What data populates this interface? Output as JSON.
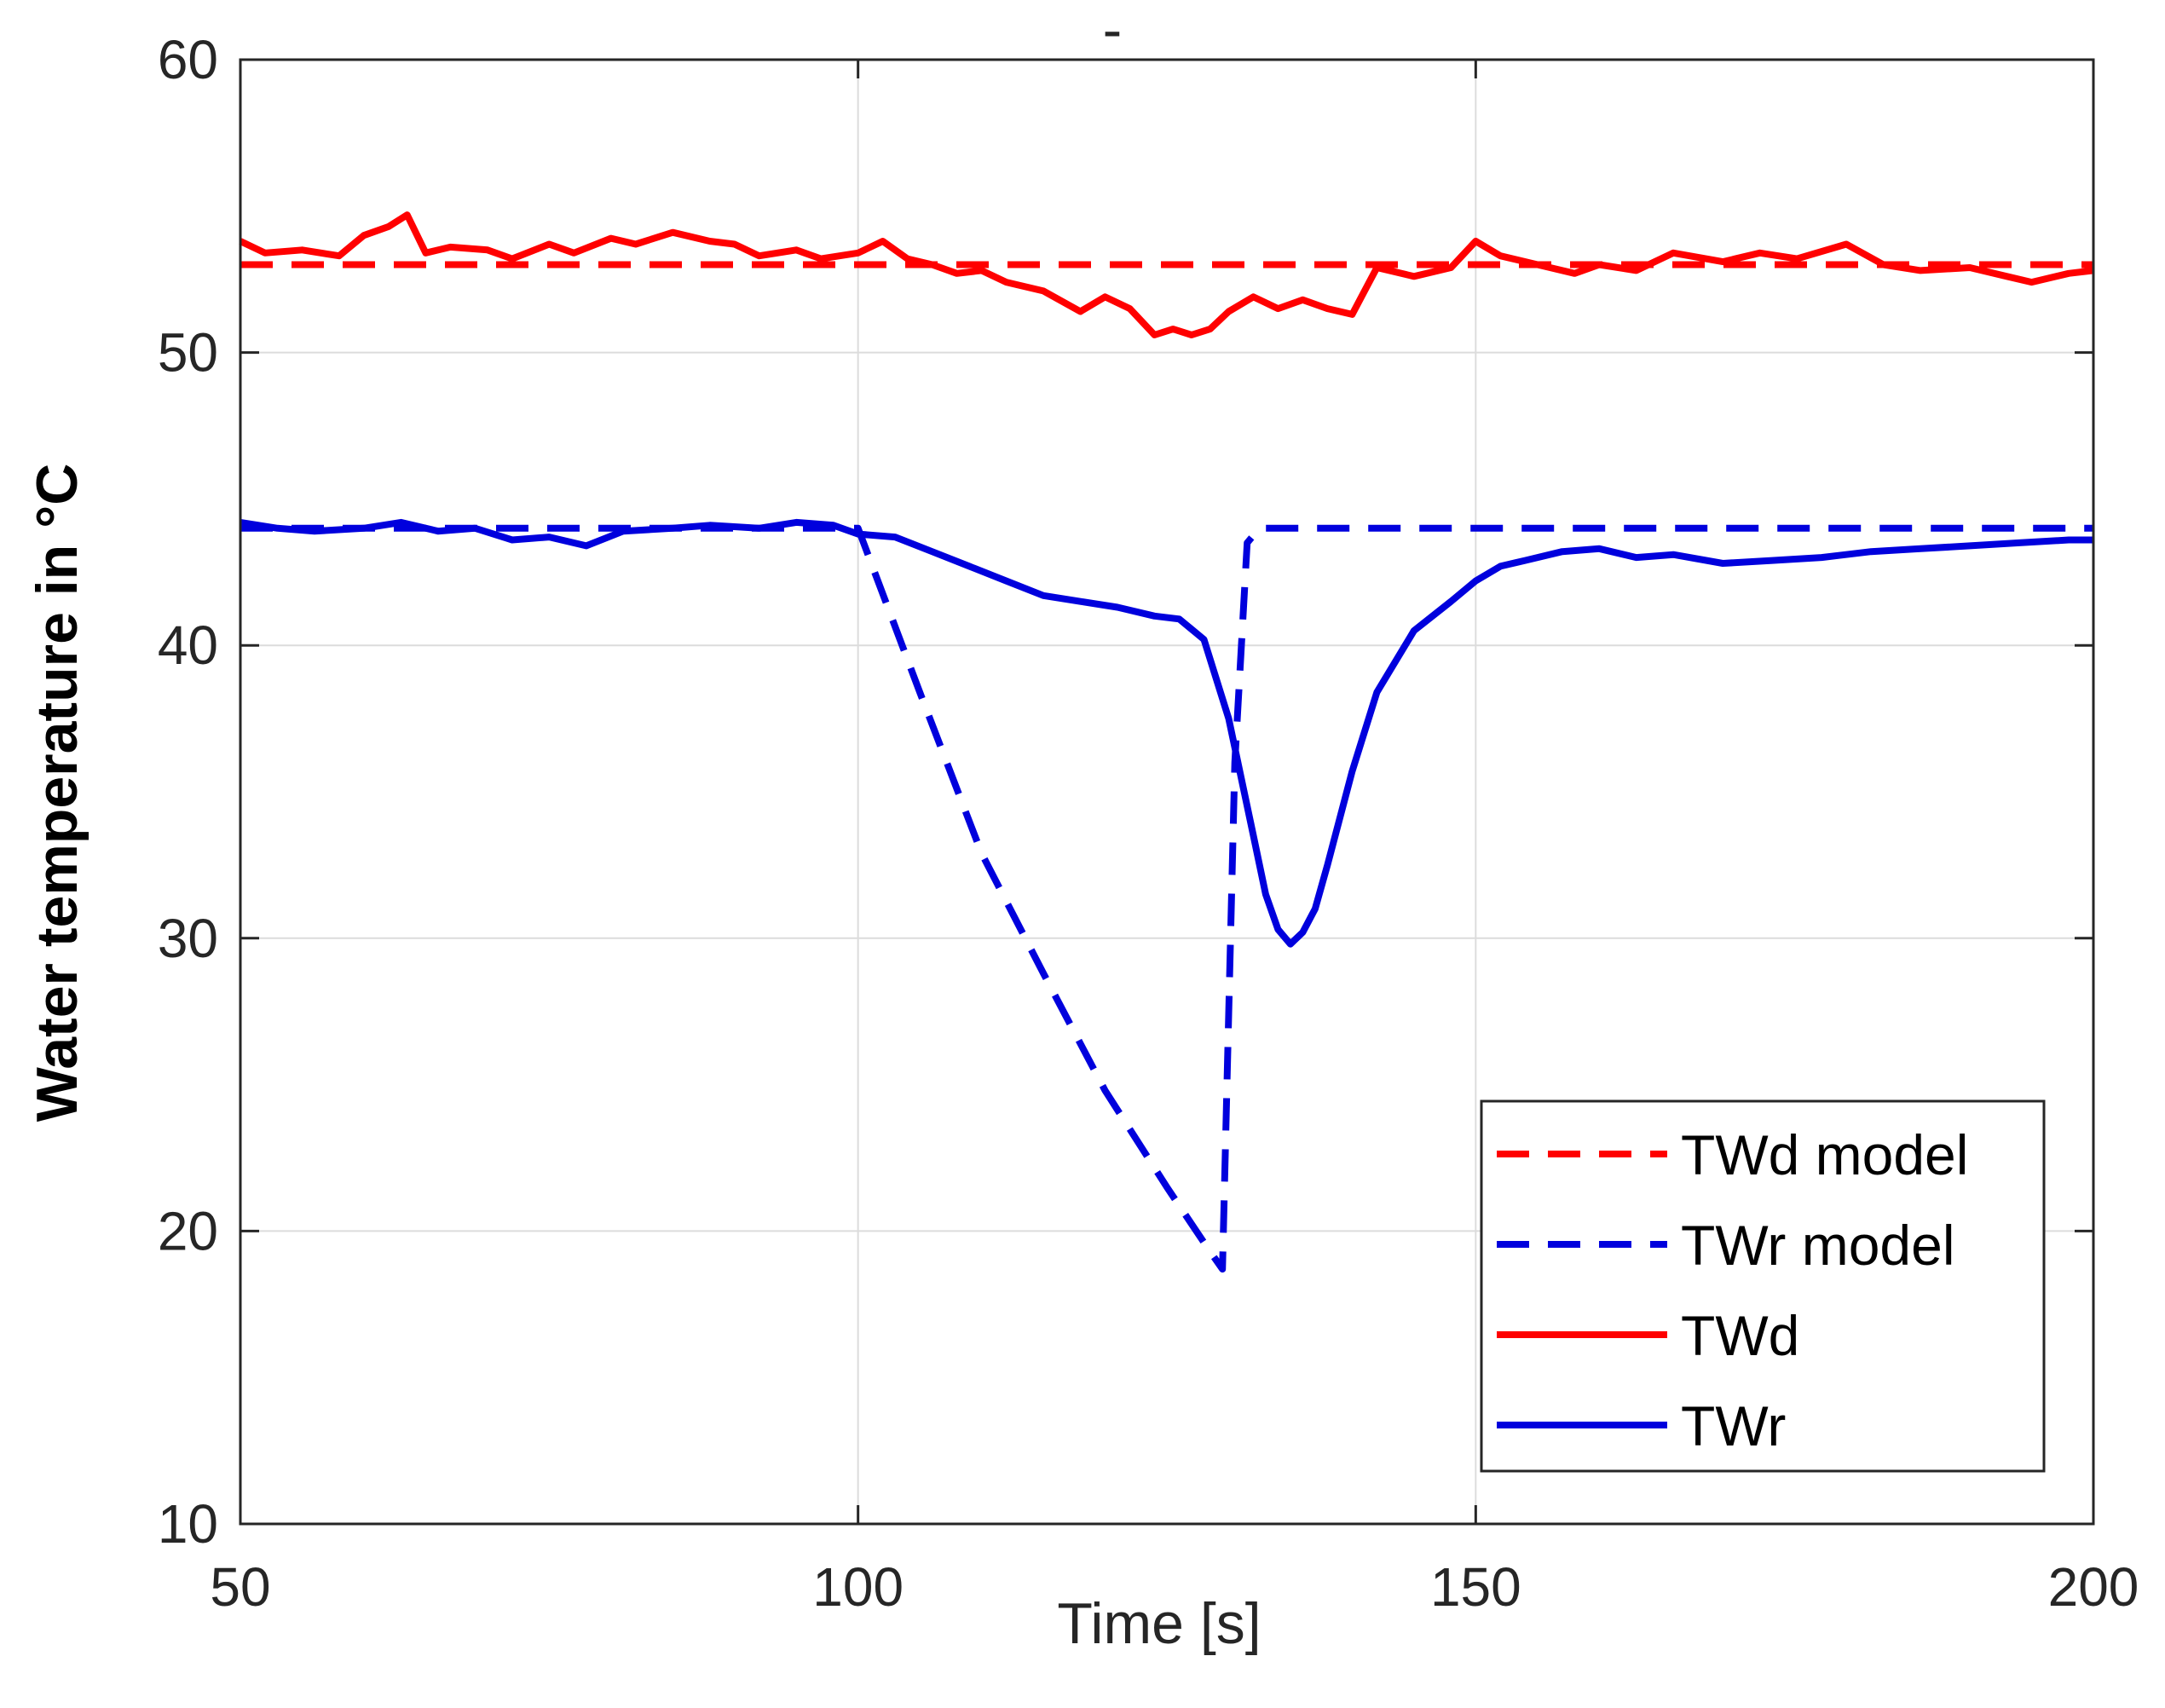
{
  "colors": {
    "red": "#ff0000",
    "blue": "#0000dd",
    "grid": "#dcdcdc",
    "axis": "#262626"
  },
  "chart_data": {
    "type": "line",
    "title": "-",
    "xlabel": "Time [s]",
    "ylabel": "Water temperature in °C",
    "xlim": [
      50,
      200
    ],
    "ylim": [
      10,
      60
    ],
    "xticks": [
      50,
      100,
      150,
      200
    ],
    "yticks": [
      10,
      20,
      30,
      40,
      50,
      60
    ],
    "xtick_labels": [
      "50",
      "100",
      "150",
      "200"
    ],
    "ytick_labels": [
      "10",
      "20",
      "30",
      "40",
      "50",
      "60"
    ],
    "grid": true,
    "legend_position": "bottom-right",
    "series": [
      {
        "name": "TWd model",
        "color": "#ff0000",
        "style": "dashed",
        "x": [
          50,
          200
        ],
        "y": [
          53.0,
          53.0
        ]
      },
      {
        "name": "TWr model",
        "color": "#0000dd",
        "style": "dashed",
        "x": [
          50,
          100,
          105,
          110,
          115,
          120,
          125,
          128.5,
          129.5,
          130.5,
          131.5,
          132.5,
          135,
          140,
          150,
          160,
          170,
          180,
          190,
          200
        ],
        "y": [
          44.0,
          44.0,
          38.4,
          32.9,
          28.8,
          24.8,
          21.5,
          19.3,
          18.7,
          36.0,
          43.5,
          44.0,
          44.0,
          44.0,
          44.0,
          44.0,
          44.0,
          44.0,
          44.0,
          44.0
        ]
      },
      {
        "name": "TWd",
        "color": "#ff0000",
        "style": "solid",
        "x": [
          50,
          52,
          55,
          58,
          60,
          62,
          63.5,
          65,
          67,
          70,
          72,
          75,
          77,
          80,
          82,
          85,
          88,
          90,
          92,
          95,
          97,
          100,
          102,
          104,
          106,
          108,
          110,
          112,
          115,
          118,
          120,
          122,
          124,
          125.5,
          127,
          128.5,
          130,
          132,
          134,
          136,
          138,
          140,
          141,
          142,
          145,
          148,
          150,
          152,
          155,
          158,
          160,
          163,
          166,
          170,
          173,
          176,
          180,
          183,
          186,
          190,
          193,
          195,
          198,
          200
        ],
        "y": [
          53.8,
          53.4,
          53.5,
          53.3,
          54.0,
          54.3,
          54.7,
          53.4,
          53.6,
          53.5,
          53.2,
          53.7,
          53.4,
          53.9,
          53.7,
          54.1,
          53.8,
          53.7,
          53.3,
          53.5,
          53.2,
          53.4,
          53.8,
          53.2,
          53.0,
          52.7,
          52.8,
          52.4,
          52.1,
          51.4,
          51.9,
          51.5,
          50.6,
          50.8,
          50.6,
          50.8,
          51.4,
          51.9,
          51.5,
          51.8,
          51.5,
          51.3,
          52.1,
          52.9,
          52.6,
          52.9,
          53.8,
          53.3,
          53.0,
          52.7,
          53.0,
          52.8,
          53.4,
          53.1,
          53.4,
          53.2,
          53.7,
          53.0,
          52.8,
          52.9,
          52.6,
          52.4,
          52.7,
          52.8
        ]
      },
      {
        "name": "TWr",
        "color": "#0000dd",
        "style": "solid",
        "x": [
          50,
          53,
          56,
          60,
          63,
          66,
          69,
          72,
          75,
          78,
          81,
          85,
          88,
          92,
          95,
          98,
          100,
          103,
          106,
          109,
          112,
          115,
          118,
          121,
          124,
          126,
          128,
          130,
          131,
          132,
          133,
          134,
          135,
          136,
          137,
          138,
          140,
          142,
          145,
          148,
          150,
          152,
          154,
          157,
          160,
          163,
          166,
          170,
          174,
          178,
          182,
          186,
          190,
          194,
          198,
          200
        ],
        "y": [
          44.2,
          44.0,
          43.9,
          44.0,
          44.2,
          43.9,
          44.0,
          43.6,
          43.7,
          43.4,
          43.9,
          44.0,
          44.1,
          44.0,
          44.2,
          44.1,
          43.8,
          43.7,
          43.2,
          42.7,
          42.2,
          41.7,
          41.5,
          41.3,
          41.0,
          40.9,
          40.2,
          37.5,
          35.5,
          33.5,
          31.5,
          30.3,
          29.8,
          30.2,
          31.0,
          32.5,
          35.7,
          38.4,
          40.5,
          41.5,
          42.2,
          42.7,
          42.9,
          43.2,
          43.3,
          43.0,
          43.1,
          42.8,
          42.9,
          43.0,
          43.2,
          43.3,
          43.4,
          43.5,
          43.6,
          43.6
        ]
      }
    ]
  }
}
